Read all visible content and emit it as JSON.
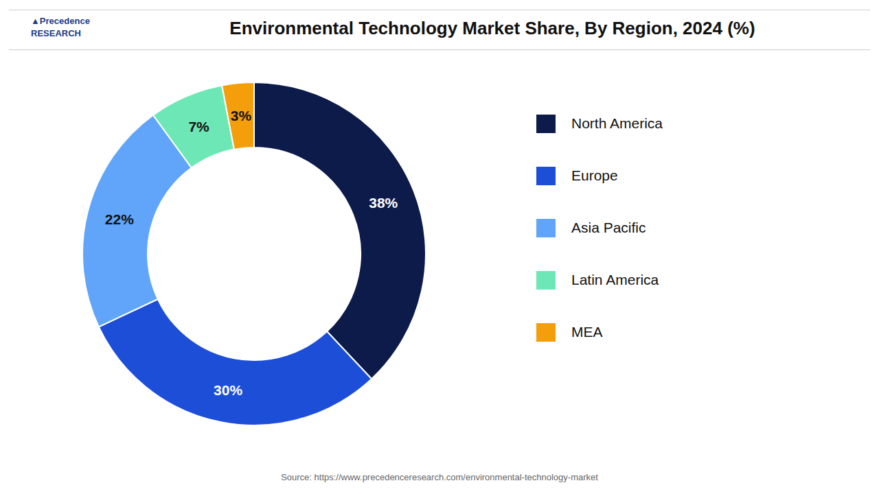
{
  "chart_data": {
    "type": "pie",
    "title": "Environmental Technology Market Share, By Region, 2024 (%)",
    "categories": [
      "North America",
      "Europe",
      "Asia Pacific",
      "Latin America",
      "MEA"
    ],
    "values": [
      38,
      30,
      22,
      7,
      3
    ],
    "value_labels": [
      "38%",
      "30%",
      "22%",
      "7%",
      "3%"
    ],
    "colors": [
      "#0d1b4b",
      "#1d4ed8",
      "#60a5fa",
      "#6ee7b7",
      "#f59e0b"
    ],
    "data_labels": true,
    "legend": "right",
    "annotations": [
      "▲Precedence\nRESEARCH",
      "Source: https://www.precedenceresearch.com/environmental-technology-market"
    ]
  }
}
